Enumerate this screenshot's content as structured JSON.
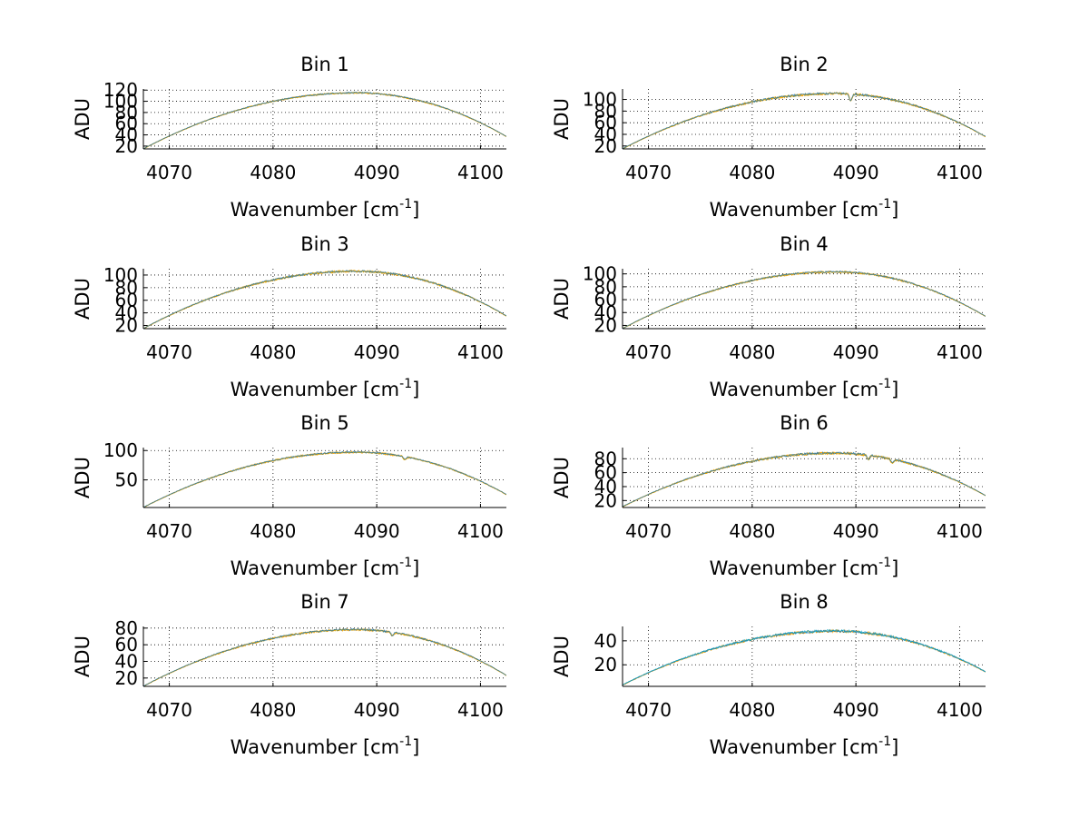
{
  "chart_data": [
    {
      "type": "line",
      "title": "Bin 1",
      "xlabel": "Wavenumber [cm",
      "xlabel_sup": "-1",
      "xlabel_end": "]",
      "ylabel": "ADU",
      "xlim": [
        4067.5,
        4102.5
      ],
      "ylim": [
        15,
        122
      ],
      "xticks": [
        4070,
        4080,
        4090,
        4100
      ],
      "yticks": [
        20,
        40,
        60,
        80,
        100,
        120
      ],
      "grid": true,
      "peak": 115,
      "peak_x": 4088,
      "edge_left": 15,
      "edge_right": 37,
      "noise": 1.2,
      "series_colors": [
        "#ffa500",
        "#c8a000",
        "#1f77b4"
      ],
      "dips": []
    },
    {
      "type": "line",
      "title": "Bin 2",
      "xlabel": "Wavenumber [cm",
      "xlabel_sup": "-1",
      "xlabel_end": "]",
      "ylabel": "ADU",
      "xlim": [
        4067.5,
        4102.5
      ],
      "ylim": [
        15,
        118
      ],
      "xticks": [
        4070,
        4080,
        4090,
        4100
      ],
      "yticks": [
        20,
        40,
        60,
        80,
        100
      ],
      "grid": true,
      "peak": 110,
      "peak_x": 4088,
      "edge_left": 15,
      "edge_right": 36,
      "noise": 1.8,
      "series_colors": [
        "#ffa500",
        "#c8a000",
        "#1f77b4"
      ],
      "dips": [
        [
          4089.5,
          12
        ]
      ]
    },
    {
      "type": "line",
      "title": "Bin 3",
      "xlabel": "Wavenumber [cm",
      "xlabel_sup": "-1",
      "xlabel_end": "]",
      "ylabel": "ADU",
      "xlim": [
        4067.5,
        4102.5
      ],
      "ylim": [
        15,
        110
      ],
      "xticks": [
        4070,
        4080,
        4090,
        4100
      ],
      "yticks": [
        20,
        40,
        60,
        80,
        100
      ],
      "grid": true,
      "peak": 106,
      "peak_x": 4088,
      "edge_left": 15,
      "edge_right": 35,
      "noise": 1.6,
      "series_colors": [
        "#ffa500",
        "#c8a000",
        "#1f77b4"
      ],
      "dips": []
    },
    {
      "type": "line",
      "title": "Bin 4",
      "xlabel": "Wavenumber [cm",
      "xlabel_sup": "-1",
      "xlabel_end": "]",
      "ylabel": "ADU",
      "xlim": [
        4067.5,
        4102.5
      ],
      "ylim": [
        15,
        108
      ],
      "xticks": [
        4070,
        4080,
        4090,
        4100
      ],
      "yticks": [
        20,
        40,
        60,
        80,
        100
      ],
      "grid": true,
      "peak": 103,
      "peak_x": 4088,
      "edge_left": 15,
      "edge_right": 34,
      "noise": 1.3,
      "series_colors": [
        "#ffa500",
        "#c8a000",
        "#1f77b4"
      ],
      "dips": []
    },
    {
      "type": "line",
      "title": "Bin 5",
      "xlabel": "Wavenumber [cm",
      "xlabel_sup": "-1",
      "xlabel_end": "]",
      "ylabel": "ADU",
      "xlim": [
        4067.5,
        4102.5
      ],
      "ylim": [
        3,
        105
      ],
      "xticks": [
        4070,
        4080,
        4090,
        4100
      ],
      "yticks": [
        50,
        100
      ],
      "grid": true,
      "peak": 97,
      "peak_x": 4088,
      "edge_left": 3,
      "edge_right": 25,
      "noise": 1.4,
      "series_colors": [
        "#ffa500",
        "#c8a000",
        "#1f77b4"
      ],
      "dips": [
        [
          4092.7,
          5
        ]
      ]
    },
    {
      "type": "line",
      "title": "Bin 6",
      "xlabel": "Wavenumber [cm",
      "xlabel_sup": "-1",
      "xlabel_end": "]",
      "ylabel": "ADU",
      "xlim": [
        4067.5,
        4102.5
      ],
      "ylim": [
        10,
        96
      ],
      "xticks": [
        4070,
        4080,
        4090,
        4100
      ],
      "yticks": [
        20,
        40,
        60,
        80
      ],
      "grid": true,
      "peak": 88,
      "peak_x": 4088,
      "edge_left": 11,
      "edge_right": 27,
      "noise": 1.5,
      "series_colors": [
        "#ffa500",
        "#c8a000",
        "#1f77b4"
      ],
      "dips": [
        [
          4091.2,
          6
        ],
        [
          4093.5,
          6
        ]
      ]
    },
    {
      "type": "line",
      "title": "Bin 7",
      "xlabel": "Wavenumber [cm",
      "xlabel_sup": "-1",
      "xlabel_end": "]",
      "ylabel": "ADU",
      "xlim": [
        4067.5,
        4102.5
      ],
      "ylim": [
        10,
        82
      ],
      "xticks": [
        4070,
        4080,
        4090,
        4100
      ],
      "yticks": [
        20,
        40,
        60,
        80
      ],
      "grid": true,
      "peak": 78,
      "peak_x": 4088,
      "edge_left": 10,
      "edge_right": 23,
      "noise": 1.1,
      "series_colors": [
        "#ffa500",
        "#c8a000",
        "#1f77b4"
      ],
      "dips": [
        [
          4091.5,
          4
        ]
      ]
    },
    {
      "type": "line",
      "title": "Bin 8",
      "xlabel": "Wavenumber [cm",
      "xlabel_sup": "-1",
      "xlabel_end": "]",
      "ylabel": "ADU",
      "xlim": [
        4067.5,
        4102.5
      ],
      "ylim": [
        2,
        52
      ],
      "xticks": [
        4070,
        4080,
        4090,
        4100
      ],
      "yticks": [
        20,
        40
      ],
      "grid": true,
      "peak": 48,
      "peak_x": 4088,
      "edge_left": 3,
      "edge_right": 14,
      "noise": 1.0,
      "series_colors": [
        "#ffa500",
        "#1f77b4",
        "#00a0c8"
      ],
      "dips": []
    }
  ]
}
